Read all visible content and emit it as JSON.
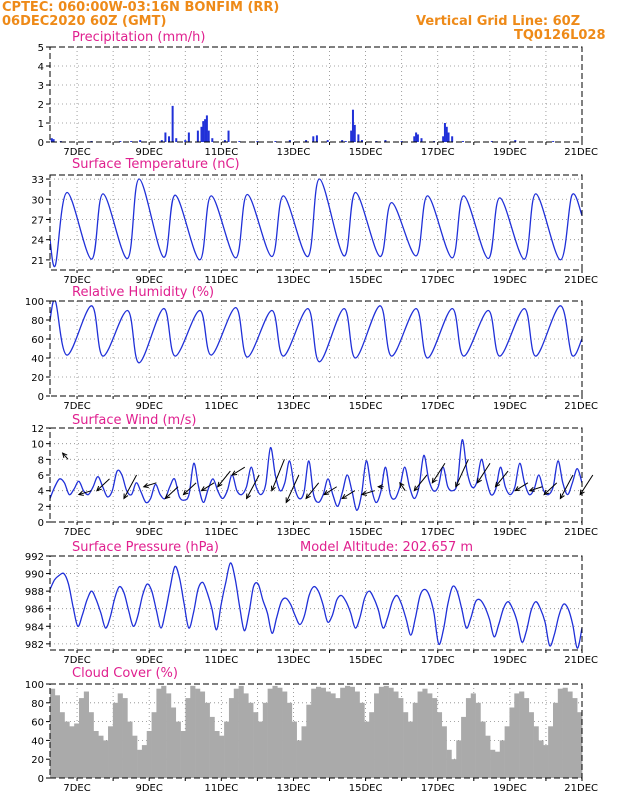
{
  "header": {
    "line1_left": "CPTEC:   060:00W-03:16N   BONFIM (RR)",
    "line2_left": "06DEC2020 60Z (GMT)",
    "line1_right": "Vertical Grid Line: 60Z",
    "line2_right": "TQ0126L028",
    "model_altitude": "Model Altitude: 202.657 m"
  },
  "colors": {
    "header": "#ee8a18",
    "panel_title": "#e0208f",
    "series": "#2030d8",
    "cloud": "#aaaaaa"
  },
  "chart_data": [
    {
      "type": "bar",
      "title": "Precipitation (mm/h)",
      "x_tick_labels": [
        "7DEC",
        "9DEC",
        "11DEC",
        "13DEC",
        "15DEC",
        "17DEC",
        "19DEC",
        "21DEC"
      ],
      "x_range_days": [
        6.25,
        21.0
      ],
      "ylim": [
        0,
        5
      ],
      "y_ticks": [
        0,
        1,
        2,
        3,
        4,
        5
      ],
      "grid": true,
      "points": [
        [
          6.3,
          0.2
        ],
        [
          6.35,
          0.15
        ],
        [
          6.55,
          0.05
        ],
        [
          7.4,
          0.05
        ],
        [
          8.2,
          0.05
        ],
        [
          8.5,
          0.05
        ],
        [
          8.75,
          0.1
        ],
        [
          9.35,
          0.1
        ],
        [
          9.45,
          0.5
        ],
        [
          9.55,
          0.3
        ],
        [
          9.65,
          1.9
        ],
        [
          9.75,
          0.2
        ],
        [
          10.0,
          0.1
        ],
        [
          10.1,
          0.5
        ],
        [
          10.35,
          0.6
        ],
        [
          10.45,
          0.8
        ],
        [
          10.5,
          1.1
        ],
        [
          10.55,
          1.2
        ],
        [
          10.6,
          1.4
        ],
        [
          10.65,
          0.6
        ],
        [
          10.75,
          0.2
        ],
        [
          11.1,
          0.1
        ],
        [
          11.2,
          0.6
        ],
        [
          11.5,
          0.05
        ],
        [
          12.0,
          0.05
        ],
        [
          12.5,
          0.05
        ],
        [
          12.9,
          0.1
        ],
        [
          13.35,
          0.1
        ],
        [
          13.55,
          0.3
        ],
        [
          13.65,
          0.35
        ],
        [
          13.95,
          0.1
        ],
        [
          14.35,
          0.1
        ],
        [
          14.45,
          0.05
        ],
        [
          14.6,
          0.6
        ],
        [
          14.65,
          1.7
        ],
        [
          14.7,
          0.9
        ],
        [
          14.8,
          0.4
        ],
        [
          14.9,
          0.1
        ],
        [
          15.3,
          0.05
        ],
        [
          15.55,
          0.1
        ],
        [
          16.0,
          0.05
        ],
        [
          16.35,
          0.3
        ],
        [
          16.4,
          0.5
        ],
        [
          16.45,
          0.4
        ],
        [
          16.55,
          0.2
        ],
        [
          16.9,
          0.05
        ],
        [
          17.15,
          0.3
        ],
        [
          17.2,
          1.0
        ],
        [
          17.25,
          0.8
        ],
        [
          17.3,
          0.5
        ],
        [
          17.4,
          0.3
        ],
        [
          17.7,
          0.05
        ],
        [
          18.5,
          0.05
        ],
        [
          19.15,
          0.1
        ],
        [
          20.2,
          0.05
        ]
      ]
    },
    {
      "type": "line",
      "title": "Surface Temperature (nC)",
      "x_tick_labels": [
        "7DEC",
        "9DEC",
        "11DEC",
        "13DEC",
        "15DEC",
        "17DEC",
        "19DEC",
        "21DEC"
      ],
      "x_range_days": [
        6.25,
        21.0
      ],
      "ylim": [
        19.5,
        33.6
      ],
      "y_ticks": [
        21,
        24,
        27,
        30,
        33
      ],
      "grid": true,
      "daily_min": [
        20.2,
        21.1,
        21.2,
        21.4,
        21.0,
        21.3,
        21.5,
        21.5,
        21.6,
        21.5,
        21.6,
        21.3,
        21.2,
        21.1,
        21.0
      ],
      "daily_max": [
        31.0,
        30.8,
        33.0,
        30.6,
        30.5,
        30.7,
        30.5,
        33.0,
        31.0,
        29.5,
        30.5,
        30.5,
        30.2,
        30.8,
        30.6
      ],
      "x_start_value": 24.0,
      "x_end_value": 27.6
    },
    {
      "type": "line",
      "title": "Relative Humidity (%)",
      "x_tick_labels": [
        "7DEC",
        "9DEC",
        "11DEC",
        "13DEC",
        "15DEC",
        "17DEC",
        "19DEC",
        "21DEC"
      ],
      "x_range_days": [
        6.25,
        21.0
      ],
      "ylim": [
        0,
        100
      ],
      "y_ticks": [
        0,
        20,
        40,
        60,
        80,
        100
      ],
      "grid": true,
      "daily_max": [
        100,
        95,
        90,
        92,
        90,
        93,
        90,
        92,
        92,
        95,
        92,
        92,
        90,
        92,
        95
      ],
      "daily_min": [
        43,
        42,
        35,
        42,
        43,
        41,
        42,
        36,
        40,
        42,
        40,
        42,
        42,
        42,
        43
      ],
      "x_start_value": 80,
      "x_end_value": 60
    },
    {
      "type": "line",
      "title": "Surface Wind (m/s)",
      "x_tick_labels": [
        "7DEC",
        "9DEC",
        "11DEC",
        "13DEC",
        "15DEC",
        "17DEC",
        "19DEC",
        "21DEC"
      ],
      "x_range_days": [
        6.25,
        21.0
      ],
      "ylim": [
        0,
        12
      ],
      "y_ticks": [
        0,
        2,
        4,
        6,
        8,
        10,
        12
      ],
      "grid": true,
      "values": [
        3.0,
        4.5,
        5.5,
        5.0,
        3.5,
        4.2,
        5.2,
        4.0,
        3.5,
        4.5,
        5.8,
        4.5,
        3.2,
        4.0,
        6.5,
        6.0,
        4.0,
        3.5,
        5.0,
        3.8,
        2.5,
        3.0,
        4.8,
        3.5,
        3.0,
        4.5,
        5.5,
        3.2,
        2.8,
        3.5,
        7.5,
        4.5,
        2.5,
        4.2,
        5.5,
        4.0,
        3.0,
        4.0,
        6.0,
        4.0,
        3.5,
        4.5,
        7.0,
        4.5,
        3.5,
        4.8,
        9.5,
        6.0,
        4.0,
        5.0,
        7.8,
        4.5,
        3.0,
        3.8,
        7.8,
        3.5,
        2.5,
        3.5,
        5.5,
        3.5,
        2.0,
        3.8,
        6.0,
        4.0,
        1.5,
        3.5,
        7.8,
        4.5,
        2.5,
        3.8,
        7.0,
        3.5,
        3.0,
        4.5,
        7.0,
        4.5,
        3.0,
        4.5,
        8.5,
        5.5,
        4.0,
        4.5,
        7.0,
        4.5,
        4.0,
        5.0,
        10.5,
        6.5,
        4.5,
        5.0,
        8.0,
        5.5,
        3.5,
        4.2,
        7.0,
        4.5,
        3.5,
        4.5,
        7.5,
        5.0,
        3.5,
        4.2,
        6.0,
        4.0,
        3.5,
        4.5,
        7.8,
        5.0,
        3.5,
        5.0,
        6.8,
        5.0
      ],
      "arrows": [
        [
          6.6,
          8.0,
          8.8
        ],
        [
          7.05,
          4.0,
          3.5
        ],
        [
          7.55,
          5.5,
          4.0
        ],
        [
          8.3,
          6.0,
          3.0
        ],
        [
          8.85,
          5.0,
          4.5
        ],
        [
          9.45,
          4.5,
          3.0
        ],
        [
          9.95,
          5.0,
          3.5
        ],
        [
          10.45,
          5.0,
          4.0
        ],
        [
          10.9,
          6.5,
          4.5
        ],
        [
          11.3,
          7.0,
          6.0
        ],
        [
          11.7,
          6.0,
          3.0
        ],
        [
          12.4,
          8.0,
          4.0
        ],
        [
          12.8,
          6.0,
          2.5
        ],
        [
          13.35,
          5.0,
          3.0
        ],
        [
          13.85,
          4.5,
          3.5
        ],
        [
          14.35,
          4.0,
          3.0
        ],
        [
          14.9,
          4.0,
          3.5
        ],
        [
          15.35,
          4.5,
          4.5
        ],
        [
          15.95,
          4.0,
          5.0
        ],
        [
          16.35,
          6.0,
          4.0
        ],
        [
          16.85,
          7.5,
          5.0
        ],
        [
          17.5,
          8.0,
          4.5
        ],
        [
          18.1,
          7.5,
          5.0
        ],
        [
          18.6,
          6.5,
          4.5
        ],
        [
          19.15,
          5.0,
          4.0
        ],
        [
          19.55,
          4.5,
          4.0
        ],
        [
          19.95,
          5.0,
          3.5
        ],
        [
          20.4,
          6.0,
          3.0
        ],
        [
          20.95,
          6.0,
          3.5
        ]
      ]
    },
    {
      "type": "line",
      "title": "Surface Pressure (hPa)",
      "x_tick_labels": [
        "7DEC",
        "9DEC",
        "11DEC",
        "13DEC",
        "15DEC",
        "17DEC",
        "19DEC",
        "21DEC"
      ],
      "x_range_days": [
        6.25,
        21.0
      ],
      "ylim": [
        981.3,
        992
      ],
      "y_ticks": [
        982,
        984,
        986,
        988,
        990,
        992
      ],
      "grid": true,
      "values": [
        988.2,
        989.3,
        989.8,
        990.0,
        988.8,
        986.2,
        984.0,
        985.3,
        987.0,
        988.0,
        987.0,
        985.5,
        983.8,
        985.0,
        987.2,
        988.5,
        987.8,
        985.8,
        984.0,
        985.2,
        987.5,
        988.8,
        988.0,
        985.8,
        983.8,
        985.8,
        988.5,
        990.8,
        989.5,
        986.5,
        983.8,
        985.5,
        988.2,
        989.0,
        987.8,
        986.0,
        983.6,
        986.5,
        989.0,
        991.2,
        989.5,
        986.2,
        983.5,
        985.5,
        988.5,
        988.8,
        987.0,
        985.5,
        983.2,
        985.0,
        986.8,
        987.2,
        986.5,
        985.2,
        984.2,
        985.2,
        987.5,
        988.5,
        988.0,
        986.5,
        984.5,
        985.2,
        987.0,
        987.5,
        986.8,
        985.5,
        983.8,
        985.0,
        987.2,
        988.0,
        987.2,
        985.8,
        983.8,
        985.0,
        986.8,
        987.5,
        986.5,
        984.8,
        983.0,
        985.0,
        987.5,
        988.2,
        987.5,
        985.5,
        982.0,
        983.5,
        986.5,
        988.5,
        988.0,
        986.0,
        983.8,
        985.0,
        986.8,
        987.0,
        986.2,
        984.8,
        982.8,
        984.2,
        986.0,
        986.8,
        986.0,
        984.5,
        982.2,
        983.5,
        985.8,
        986.8,
        986.0,
        984.5,
        981.8,
        983.0,
        985.2,
        986.5,
        986.0,
        984.2,
        981.5,
        983.8
      ]
    },
    {
      "type": "bar",
      "title": "Cloud Cover (%)",
      "x_tick_labels": [
        "7DEC",
        "9DEC",
        "11DEC",
        "13DEC",
        "15DEC",
        "17DEC",
        "19DEC",
        "21DEC"
      ],
      "x_range_days": [
        6.25,
        21.0
      ],
      "ylim": [
        0,
        100
      ],
      "y_ticks": [
        0,
        20,
        40,
        60,
        80,
        100
      ],
      "grid": true,
      "values": [
        95,
        88,
        70,
        60,
        55,
        58,
        85,
        92,
        70,
        50,
        45,
        40,
        55,
        80,
        90,
        85,
        60,
        45,
        30,
        35,
        50,
        70,
        95,
        98,
        90,
        75,
        60,
        50,
        85,
        98,
        95,
        92,
        80,
        65,
        50,
        45,
        60,
        85,
        95,
        98,
        90,
        80,
        70,
        60,
        80,
        95,
        98,
        96,
        92,
        80,
        60,
        40,
        55,
        78,
        95,
        97,
        96,
        92,
        90,
        85,
        96,
        98,
        97,
        92,
        80,
        60,
        70,
        90,
        97,
        98,
        96,
        92,
        85,
        70,
        60,
        80,
        92,
        95,
        90,
        85,
        70,
        55,
        30,
        20,
        40,
        65,
        85,
        90,
        80,
        60,
        45,
        30,
        28,
        40,
        55,
        75,
        90,
        92,
        85,
        70,
        55,
        40,
        35,
        55,
        80,
        95,
        96,
        92,
        85,
        70
      ]
    }
  ]
}
